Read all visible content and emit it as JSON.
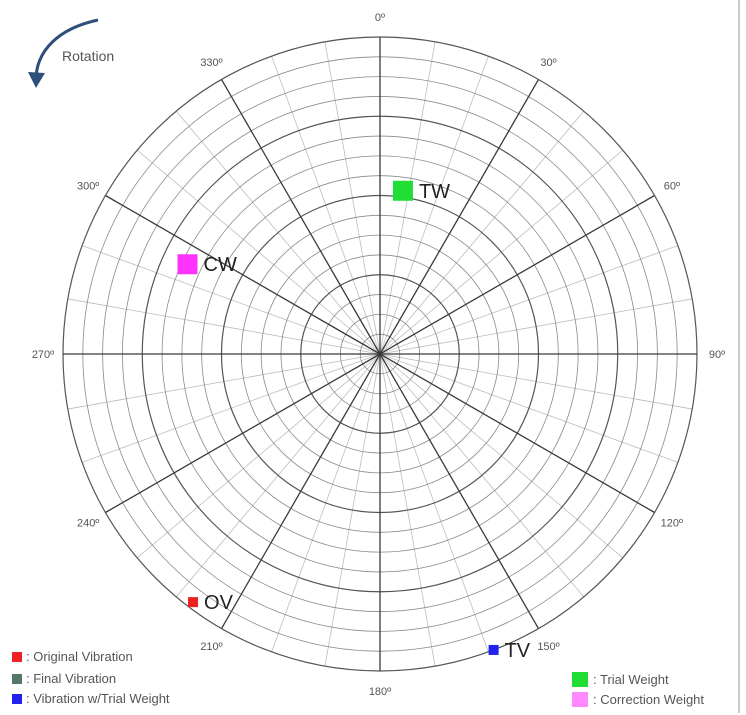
{
  "rotation": {
    "label": "Rotation",
    "direction": "counter-clockwise",
    "icon": "curved-arrow-icon",
    "color": "#2e4f7a"
  },
  "angle_labels": [
    "0º",
    "30º",
    "60º",
    "90º",
    "120º",
    "150º",
    "180º",
    "210º",
    "240º",
    "270º",
    "300º",
    "330º"
  ],
  "markers": [
    {
      "id": "TW",
      "label": "TW",
      "color": "#22dd33",
      "angle_deg": 8,
      "radius_fraction": 0.52,
      "size": "large"
    },
    {
      "id": "CW",
      "label": "CW",
      "color": "#ff33ff",
      "angle_deg": 295,
      "radius_fraction": 0.67,
      "size": "large"
    },
    {
      "id": "OV",
      "label": "OV",
      "color": "#ee2222",
      "angle_deg": 217,
      "radius_fraction": 0.98,
      "size": "small"
    },
    {
      "id": "TV",
      "label": "TV",
      "color": "#2222ee",
      "angle_deg": 159,
      "radius_fraction": 1.0,
      "size": "small"
    }
  ],
  "legend_left": [
    {
      "label": ": Original Vibration",
      "color": "#ee2222"
    },
    {
      "label": ": Final Vibration",
      "color": "#557766"
    },
    {
      "label": ": Vibration w/Trial Weight",
      "color": "#2222ee"
    }
  ],
  "legend_right": [
    {
      "label": ": Trial Weight",
      "color": "#22dd33"
    },
    {
      "label": ": Correction Weight",
      "color": "#ff88ff"
    }
  ]
}
